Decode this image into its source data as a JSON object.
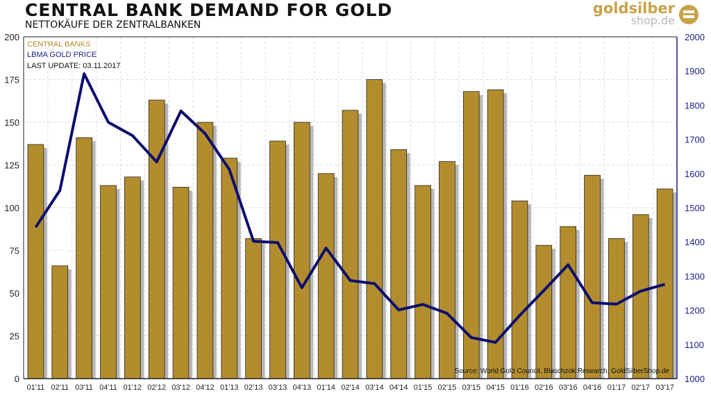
{
  "header": {
    "title": "CENTRAL BANK DEMAND FOR GOLD",
    "subtitle": "NETTOKÄUFE DER ZENTRALBANKEN",
    "logo_line1": "goldsilber",
    "logo_line2": "shop.de"
  },
  "legend": {
    "bars": "CENTRAL BANKS",
    "line": "LBMA GOLD PRICE",
    "update": "LAST UPDATE: 03.11.2017"
  },
  "source": "Source: World Gold Council, Blaschzok Research, GoldSilberShop.de",
  "colors": {
    "bars": "#b38d2d",
    "bar_shadow": "#9a9a9a",
    "line": "#0c0c6e",
    "right_axis": "#1c1c8a"
  },
  "chart_data": {
    "type": "bar+line",
    "title": "CENTRAL BANK DEMAND FOR GOLD",
    "subtitle": "NETTOKÄUFE DER ZENTRALBANKEN",
    "categories": [
      "Q1'11",
      "Q2'11",
      "Q3'11",
      "Q4'11",
      "Q1'12",
      "Q2'12",
      "Q3'12",
      "Q4'12",
      "Q1'13",
      "Q2'13",
      "Q3'13",
      "Q4'13",
      "Q1'14",
      "Q2'14",
      "Q3'14",
      "Q4'14",
      "Q1'15",
      "Q2'15",
      "Q3'15",
      "Q4'15",
      "Q1'16",
      "Q2'16",
      "Q3'16",
      "Q4'16",
      "Q1'17",
      "Q2'17",
      "Q3'17"
    ],
    "series": [
      {
        "name": "CENTRAL BANKS",
        "type": "bar",
        "axis": "left",
        "values": [
          137,
          66,
          141,
          113,
          118,
          163,
          112,
          150,
          129,
          82,
          139,
          150,
          120,
          157,
          175,
          134,
          113,
          127,
          168,
          169,
          104,
          78,
          89,
          119,
          82,
          96,
          111
        ]
      },
      {
        "name": "LBMA GOLD PRICE",
        "type": "line",
        "axis": "right",
        "values": [
          1443,
          1551,
          1892,
          1750,
          1711,
          1634,
          1783,
          1717,
          1612,
          1402,
          1398,
          1266,
          1382,
          1287,
          1278,
          1201,
          1217,
          1191,
          1120,
          1106,
          1185,
          1258,
          1333,
          1222,
          1218,
          1256,
          1276
        ]
      }
    ],
    "ylim_left": [
      0,
      200
    ],
    "yticks_left": [
      0,
      25,
      50,
      75,
      100,
      125,
      150,
      175,
      200
    ],
    "ylim_right": [
      1000,
      2000
    ],
    "yticks_right": [
      1000,
      1100,
      1200,
      1300,
      1400,
      1500,
      1600,
      1700,
      1800,
      1900,
      2000
    ],
    "grid": true,
    "legend_placement": "top-left"
  }
}
